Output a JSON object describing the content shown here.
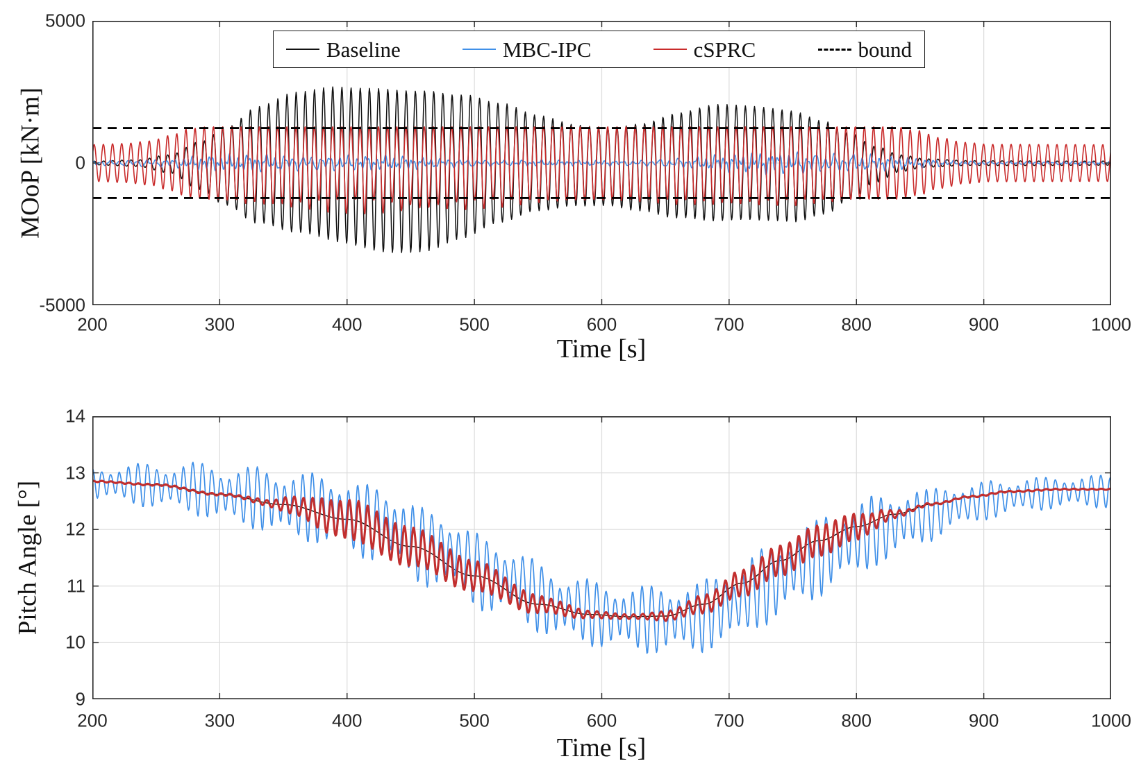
{
  "figure": {
    "background": "#ffffff",
    "axis_color": "#262626",
    "grid_color": "#DCDCDC"
  },
  "legend": {
    "entries": [
      {
        "label": "Baseline",
        "color": "#111111",
        "style": "solid"
      },
      {
        "label": "MBC-IPC",
        "color": "#4090E8",
        "style": "solid"
      },
      {
        "label": "cSPRC",
        "color": "#C92B2B",
        "style": "solid"
      },
      {
        "label": "bound",
        "color": "#000000",
        "style": "dashed"
      }
    ]
  },
  "chart_data": [
    {
      "type": "line",
      "title": "",
      "ylabel": "MOoP [kN·m]",
      "xlabel": "Time [s]",
      "xlim": [
        200,
        1000
      ],
      "ylim": [
        -5000,
        5000
      ],
      "xticks": [
        200,
        300,
        400,
        500,
        600,
        700,
        800,
        900,
        1000
      ],
      "yticks": [
        5000,
        0,
        -5000
      ],
      "grid": true,
      "legend_position": "top-center-inside",
      "bound_value_knm": 1230,
      "carrier_period_s": 7.2,
      "series": [
        {
          "name": "Baseline",
          "color": "#111111",
          "model": "osc",
          "phase": 0.15,
          "neg_scale": 1.1,
          "amp_keys": [
            [
              200,
              60
            ],
            [
              235,
              110
            ],
            [
              260,
              300
            ],
            [
              285,
              800
            ],
            [
              305,
              1300
            ],
            [
              330,
              1950
            ],
            [
              360,
              2350
            ],
            [
              395,
              2600
            ],
            [
              430,
              2720
            ],
            [
              460,
              2680
            ],
            [
              490,
              2400
            ],
            [
              520,
              2000
            ],
            [
              550,
              1600
            ],
            [
              580,
              1350
            ],
            [
              605,
              1290
            ],
            [
              630,
              1450
            ],
            [
              660,
              1750
            ],
            [
              690,
              1950
            ],
            [
              720,
              1900
            ],
            [
              750,
              1850
            ],
            [
              775,
              1550
            ],
            [
              795,
              1100
            ],
            [
              815,
              600
            ],
            [
              835,
              280
            ],
            [
              855,
              140
            ],
            [
              890,
              80
            ],
            [
              1000,
              70
            ]
          ]
        },
        {
          "name": "MBC-IPC",
          "color": "#4090E8",
          "model": "noise",
          "phase": 2.0,
          "amp_keys": [
            [
              200,
              90
            ],
            [
              250,
              150
            ],
            [
              300,
              250
            ],
            [
              340,
              300
            ],
            [
              380,
              290
            ],
            [
              430,
              230
            ],
            [
              480,
              160
            ],
            [
              530,
              110
            ],
            [
              580,
              85
            ],
            [
              620,
              100
            ],
            [
              660,
              180
            ],
            [
              700,
              280
            ],
            [
              735,
              360
            ],
            [
              765,
              400
            ],
            [
              795,
              350
            ],
            [
              825,
              250
            ],
            [
              850,
              150
            ],
            [
              880,
              85
            ],
            [
              915,
              60
            ],
            [
              1000,
              55
            ]
          ]
        },
        {
          "name": "cSPRC",
          "color": "#C92B2B",
          "model": "clipped",
          "phase": 0.3,
          "amp_keys": [
            [
              200,
              650
            ],
            [
              225,
              690
            ],
            [
              245,
              780
            ],
            [
              262,
              980
            ],
            [
              275,
              1200
            ],
            [
              290,
              1280
            ],
            [
              830,
              1280
            ],
            [
              848,
              1150
            ],
            [
              865,
              900
            ],
            [
              885,
              730
            ],
            [
              905,
              660
            ],
            [
              1000,
              650
            ]
          ]
        },
        {
          "name": "bound",
          "color": "#000000",
          "model": "bound",
          "values": [
            1230,
            -1230
          ],
          "dash": "13 9"
        }
      ]
    },
    {
      "type": "line",
      "title": "",
      "ylabel": "Pitch Angle [°]",
      "xlabel": "Time [s]",
      "xlim": [
        200,
        1000
      ],
      "ylim": [
        9,
        14
      ],
      "xticks": [
        200,
        300,
        400,
        500,
        600,
        700,
        800,
        900,
        1000
      ],
      "yticks": [
        14,
        13,
        12,
        11,
        10,
        9
      ],
      "grid": true,
      "carrier_period_s": 7.2,
      "series": [
        {
          "name": "Baseline",
          "color": "#111111",
          "model": "mean",
          "mean_keys": [
            [
              200,
              12.85
            ],
            [
              250,
              12.79
            ],
            [
              300,
              12.62
            ],
            [
              350,
              12.44
            ],
            [
              400,
              12.18
            ],
            [
              450,
              11.7
            ],
            [
              500,
              11.18
            ],
            [
              550,
              10.68
            ],
            [
              590,
              10.5
            ],
            [
              620,
              10.46
            ],
            [
              650,
              10.47
            ],
            [
              680,
              10.68
            ],
            [
              710,
              11.05
            ],
            [
              740,
              11.45
            ],
            [
              770,
              11.8
            ],
            [
              800,
              12.05
            ],
            [
              830,
              12.27
            ],
            [
              860,
              12.45
            ],
            [
              890,
              12.58
            ],
            [
              920,
              12.67
            ],
            [
              960,
              12.71
            ],
            [
              1000,
              12.71
            ]
          ]
        },
        {
          "name": "MBC-IPC",
          "color": "#4090E8",
          "model": "beat",
          "phase": 1.57,
          "mean_lag_s": 20,
          "mean_offset": -0.03,
          "beat": {
            "period_s": 8.6,
            "fraction": 0.32,
            "phase": 0.8
          },
          "amp_keys": [
            [
              200,
              0.22
            ],
            [
              250,
              0.3
            ],
            [
              300,
              0.38
            ],
            [
              350,
              0.45
            ],
            [
              400,
              0.5
            ],
            [
              450,
              0.52
            ],
            [
              500,
              0.5
            ],
            [
              550,
              0.47
            ],
            [
              600,
              0.44
            ],
            [
              650,
              0.46
            ],
            [
              700,
              0.5
            ],
            [
              750,
              0.53
            ],
            [
              790,
              0.53
            ],
            [
              830,
              0.45
            ],
            [
              860,
              0.35
            ],
            [
              900,
              0.26
            ],
            [
              950,
              0.22
            ],
            [
              1000,
              0.22
            ]
          ]
        },
        {
          "name": "cSPRC",
          "color": "#C22F2F",
          "model": "ripple",
          "phase": 1.35,
          "amp_keys": [
            [
              200,
              0.012
            ],
            [
              310,
              0.02
            ],
            [
              335,
              0.05
            ],
            [
              360,
              0.16
            ],
            [
              385,
              0.3
            ],
            [
              410,
              0.36
            ],
            [
              440,
              0.35
            ],
            [
              475,
              0.31
            ],
            [
              505,
              0.26
            ],
            [
              535,
              0.19
            ],
            [
              565,
              0.12
            ],
            [
              595,
              0.06
            ],
            [
              625,
              0.04
            ],
            [
              655,
              0.09
            ],
            [
              685,
              0.17
            ],
            [
              715,
              0.24
            ],
            [
              745,
              0.27
            ],
            [
              775,
              0.27
            ],
            [
              800,
              0.23
            ],
            [
              815,
              0.15
            ],
            [
              830,
              0.07
            ],
            [
              845,
              0.03
            ],
            [
              870,
              0.015
            ],
            [
              1000,
              0.01
            ]
          ]
        }
      ]
    }
  ]
}
